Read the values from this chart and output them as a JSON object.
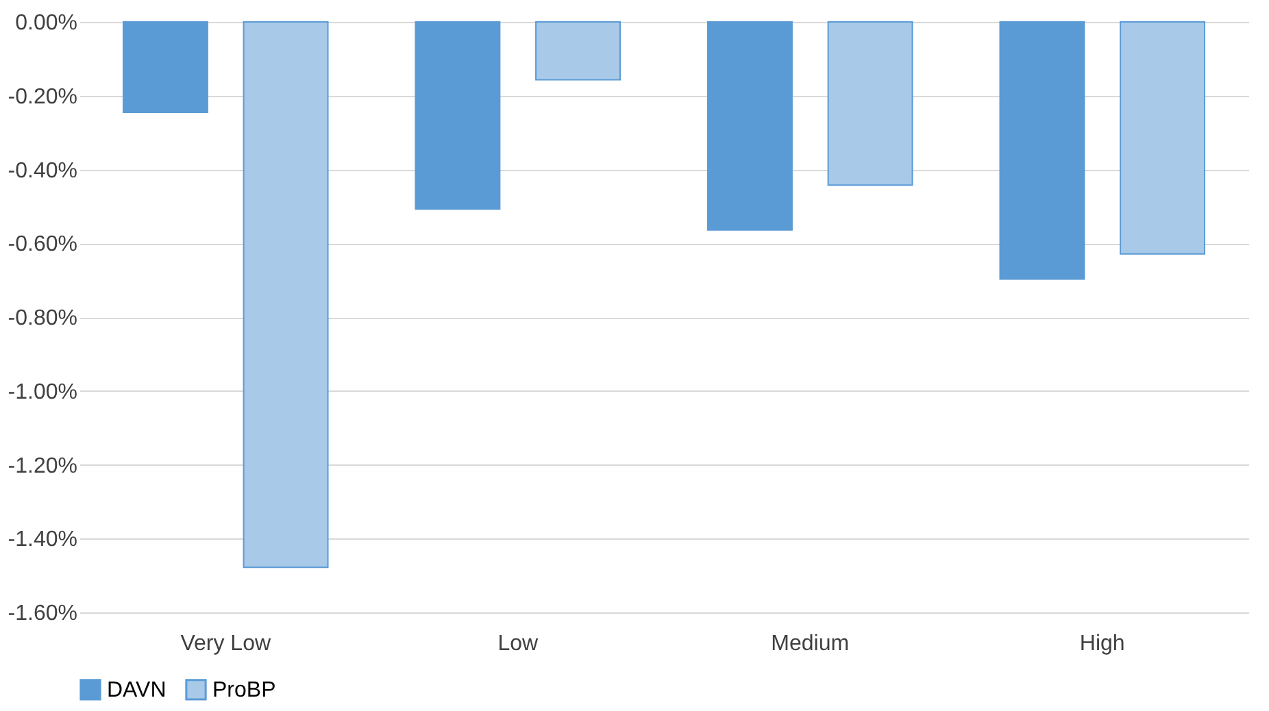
{
  "chart_data": {
    "type": "bar",
    "categories": [
      "Very Low",
      "Low",
      "Medium",
      "High"
    ],
    "series": [
      {
        "name": "DAVN",
        "color": "#5b9bd5",
        "values": [
          -0.245,
          -0.507,
          -0.564,
          -0.697
        ]
      },
      {
        "name": "ProBP",
        "color": "#a9c9e9",
        "values": [
          -1.478,
          -0.157,
          -0.442,
          -0.629
        ]
      }
    ],
    "ylim": [
      -1.6,
      0
    ],
    "yticks": [
      {
        "value": 0,
        "label": "0.00%"
      },
      {
        "value": -0.2,
        "label": "-0.20%"
      },
      {
        "value": -0.4,
        "label": "-0.40%"
      },
      {
        "value": -0.6,
        "label": "-0.60%"
      },
      {
        "value": -0.8,
        "label": "-0.80%"
      },
      {
        "value": -1.0,
        "label": "-1.00%"
      },
      {
        "value": -1.2,
        "label": "-1.20%"
      },
      {
        "value": -1.4,
        "label": "-1.40%"
      },
      {
        "value": -1.6,
        "label": "-1.60%"
      }
    ],
    "grid": "y",
    "legend": "bottom"
  }
}
